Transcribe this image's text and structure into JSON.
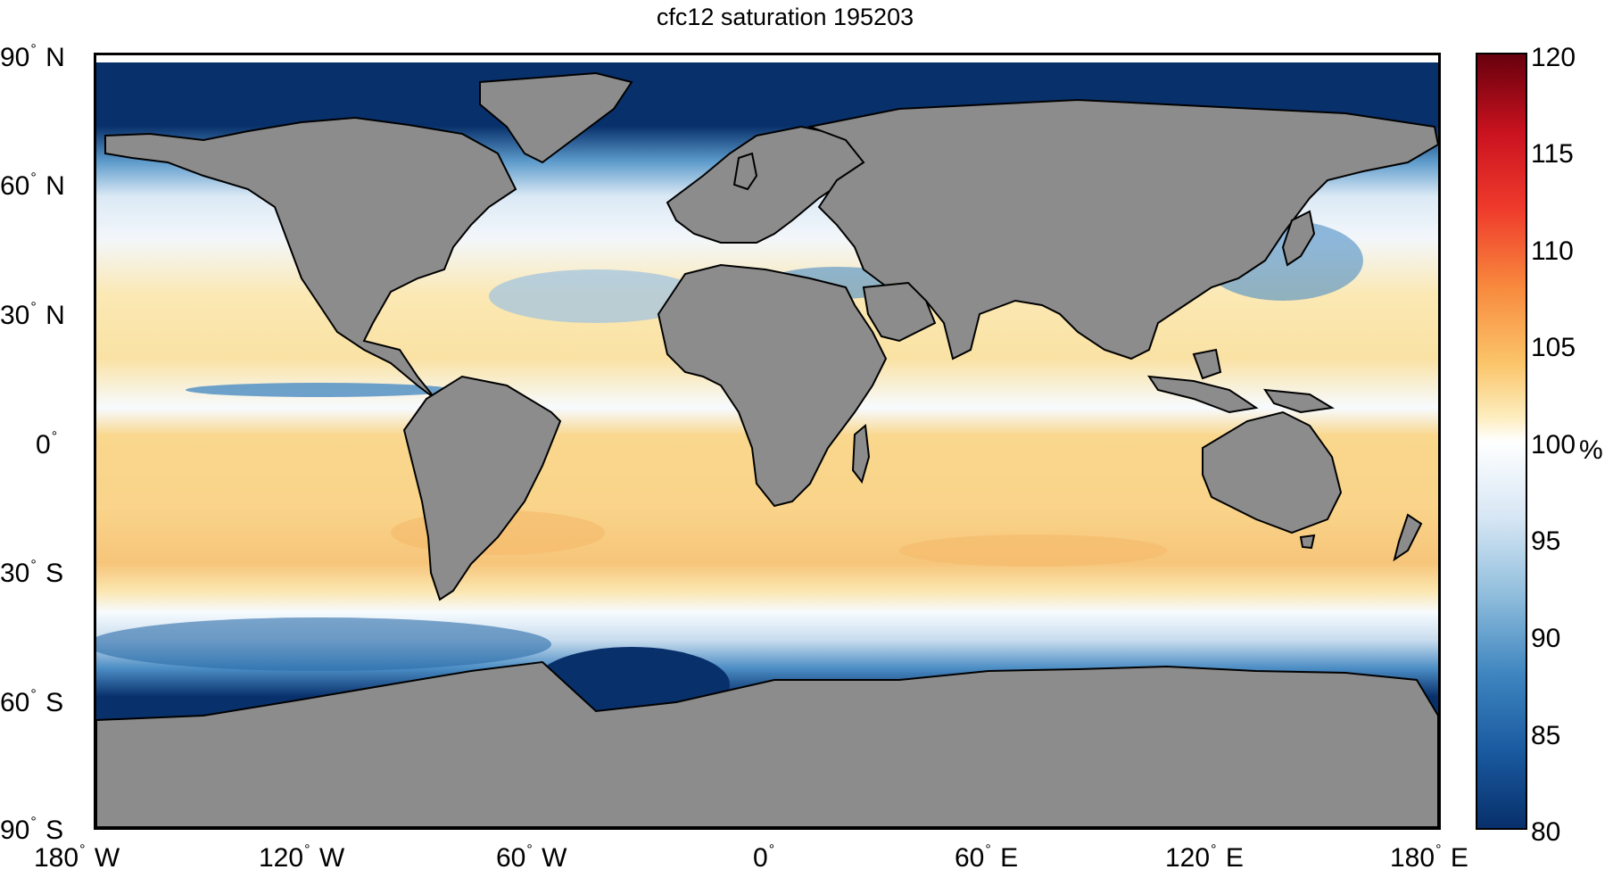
{
  "title": "cfc12 saturation 195203",
  "y_ticks": [
    {
      "num": "90",
      "hem": "N"
    },
    {
      "num": "60",
      "hem": "N"
    },
    {
      "num": "30",
      "hem": "N"
    },
    {
      "num": "0",
      "hem": ""
    },
    {
      "num": "30",
      "hem": "S"
    },
    {
      "num": "60",
      "hem": "S"
    },
    {
      "num": "90",
      "hem": "S"
    }
  ],
  "x_ticks": [
    {
      "num": "180",
      "hem": "W"
    },
    {
      "num": "120",
      "hem": "W"
    },
    {
      "num": "60",
      "hem": "W"
    },
    {
      "num": "0",
      "hem": ""
    },
    {
      "num": "60",
      "hem": "E"
    },
    {
      "num": "120",
      "hem": "E"
    },
    {
      "num": "180",
      "hem": "E"
    }
  ],
  "colorbar": {
    "labels": [
      "120",
      "115",
      "110",
      "105",
      "100",
      "95",
      "90",
      "85",
      "80"
    ],
    "unit": "%",
    "range": [
      80,
      120
    ]
  },
  "colors": {
    "land": "#8c8c8c",
    "deep_blue": "#08306b",
    "mid_blue": "#4a8cc4",
    "light_blue": "#bcd7ea",
    "white": "#f7fbff",
    "pale_yellow": "#fbe6a8",
    "yellow": "#f9d68a",
    "orange": "#f5b96a",
    "red": "#c9121f",
    "dark_red": "#7a0a15"
  }
}
